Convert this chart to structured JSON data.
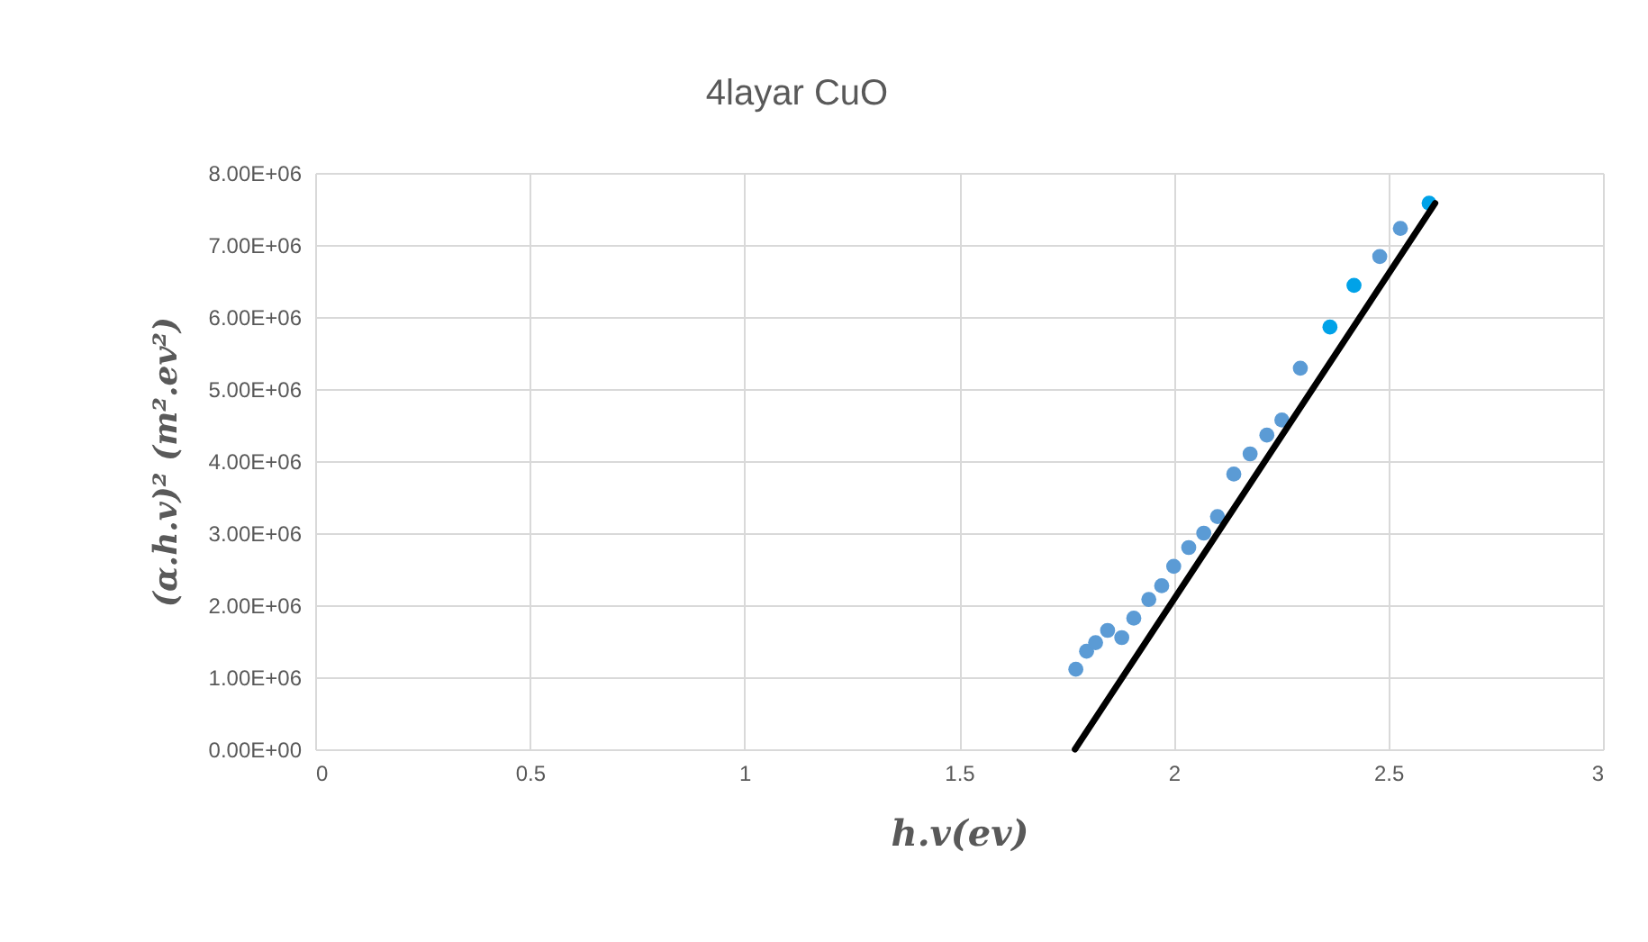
{
  "chart_data": {
    "type": "scatter",
    "title": "4layar CuO",
    "xlabel": "h.v(ev)",
    "ylabel": "(α.h.v)² (m².ev²)",
    "xlim": [
      0,
      3
    ],
    "xticks": [
      0,
      0.5,
      1,
      1.5,
      2,
      2.5,
      3
    ],
    "ylim": [
      0,
      8000000
    ],
    "yticks": [
      {
        "value": 0,
        "label": "0.00E+00"
      },
      {
        "value": 1000000,
        "label": "1.00E+06"
      },
      {
        "value": 2000000,
        "label": "2.00E+06"
      },
      {
        "value": 3000000,
        "label": "3.00E+06"
      },
      {
        "value": 4000000,
        "label": "4.00E+06"
      },
      {
        "value": 5000000,
        "label": "5.00E+06"
      },
      {
        "value": 6000000,
        "label": "6.00E+06"
      },
      {
        "value": 7000000,
        "label": "7.00E+06"
      },
      {
        "value": 8000000,
        "label": "8.00E+06"
      }
    ],
    "grid": true,
    "series": [
      {
        "type": "scatter",
        "marker": "circle",
        "x": [
          1.772,
          1.797,
          1.818,
          1.846,
          1.879,
          1.907,
          1.942,
          1.972,
          2.0,
          2.035,
          2.07,
          2.102,
          2.14,
          2.178,
          2.217,
          2.252,
          2.295,
          2.364,
          2.42,
          2.48,
          2.528,
          2.595
        ],
        "values": [
          1110000,
          1360000,
          1480000,
          1650000,
          1550000,
          1820000,
          2080000,
          2270000,
          2540000,
          2800000,
          3000000,
          3230000,
          3820000,
          4100000,
          4360000,
          4570000,
          5290000,
          5860000,
          6440000,
          6840000,
          7230000,
          7580000
        ],
        "colors": [
          "#5b9bd5",
          "#5b9bd5",
          "#5b9bd5",
          "#5b9bd5",
          "#5b9bd5",
          "#5b9bd5",
          "#5b9bd5",
          "#5b9bd5",
          "#5b9bd5",
          "#5b9bd5",
          "#5b9bd5",
          "#5b9bd5",
          "#5b9bd5",
          "#5b9bd5",
          "#5b9bd5",
          "#5b9bd5",
          "#5b9bd5",
          "#00a2e8",
          "#00a2e8",
          "#5b9bd5",
          "#5b9bd5",
          "#00a2e8"
        ]
      },
      {
        "type": "line",
        "color": "#000000",
        "x": [
          1.77,
          2.609
        ],
        "values": [
          0,
          7580000
        ]
      }
    ]
  }
}
